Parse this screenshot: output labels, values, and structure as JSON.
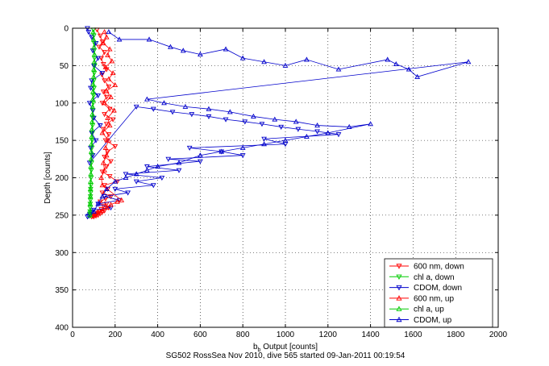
{
  "chart_data": {
    "type": "scatter",
    "xlabel_main": "b",
    "xlabel_sub": "b",
    "xlabel_rest": " Output [counts]",
    "ylabel": "Depth [counts]",
    "caption": "SG502 RossSea Nov 2010, dive 565 started 09-Jan-2011 00:19:54",
    "xlim": [
      0,
      2000
    ],
    "ylim": [
      0,
      400
    ],
    "y_reversed": true,
    "grid": true,
    "x_ticks": [
      "0",
      "200",
      "400",
      "600",
      "800",
      "1000",
      "1200",
      "1400",
      "1600",
      "1800",
      "2000"
    ],
    "y_ticks": [
      "0",
      "50",
      "100",
      "150",
      "200",
      "250",
      "300",
      "350",
      "400"
    ],
    "legend_position": "bottom-right",
    "series": [
      {
        "name": "600 nm, down",
        "color": "#ff0000",
        "marker": "triangle-down",
        "x": [
          115,
          130,
          140,
          125,
          150,
          135,
          145,
          160,
          138,
          150,
          170,
          145,
          160,
          140,
          175,
          150,
          190,
          160,
          145,
          170,
          155,
          200,
          165,
          150,
          180,
          160,
          140,
          175,
          210,
          150,
          165,
          140,
          180,
          155,
          130,
          160,
          145,
          170,
          135,
          150,
          125,
          140,
          120,
          130,
          110,
          120,
          100,
          110,
          95,
          100,
          90
        ],
        "y": [
          2,
          10,
          18,
          25,
          32,
          40,
          48,
          55,
          62,
          70,
          78,
          85,
          92,
          100,
          108,
          115,
          122,
          128,
          135,
          142,
          150,
          158,
          165,
          172,
          178,
          185,
          192,
          198,
          205,
          210,
          215,
          220,
          225,
          228,
          232,
          235,
          238,
          240,
          242,
          244,
          245,
          246,
          247,
          248,
          249,
          250,
          250,
          251,
          251,
          252,
          252
        ]
      },
      {
        "name": "chl a, down",
        "color": "#00cc00",
        "marker": "triangle-down",
        "x": [
          98,
          100,
          102,
          101,
          103,
          104,
          102,
          100,
          101,
          99,
          97,
          96,
          95,
          94,
          93,
          92,
          91,
          90,
          89,
          88,
          87,
          86,
          85,
          85,
          84,
          84,
          83,
          83,
          82,
          82,
          82
        ],
        "y": [
          2,
          10,
          20,
          30,
          40,
          50,
          60,
          70,
          80,
          90,
          100,
          110,
          120,
          130,
          140,
          150,
          160,
          170,
          180,
          190,
          200,
          210,
          215,
          220,
          225,
          230,
          235,
          240,
          245,
          248,
          251
        ]
      },
      {
        "name": "CDOM, down",
        "color": "#0000cc",
        "marker": "triangle-down",
        "x": [
          70,
          75,
          90,
          110,
          95,
          120,
          100,
          140,
          90,
          85,
          120,
          80,
          95,
          100,
          130,
          90,
          110,
          85,
          95,
          80,
          300,
          380,
          470,
          560,
          640,
          720,
          810,
          890,
          980,
          1060,
          1150,
          1250,
          900,
          1000,
          550,
          700,
          800,
          450,
          600,
          350,
          500,
          250,
          420,
          300,
          380,
          200,
          260,
          150,
          220,
          120,
          180,
          100,
          90,
          80,
          75,
          70
        ],
        "y": [
          0,
          5,
          12,
          20,
          30,
          40,
          50,
          60,
          70,
          80,
          90,
          100,
          110,
          120,
          130,
          140,
          150,
          160,
          170,
          180,
          105,
          108,
          112,
          115,
          118,
          122,
          125,
          128,
          132,
          135,
          138,
          142,
          148,
          155,
          160,
          165,
          170,
          175,
          178,
          185,
          190,
          195,
          200,
          205,
          210,
          215,
          220,
          225,
          230,
          235,
          240,
          243,
          246,
          249,
          251,
          252
        ]
      },
      {
        "name": "600 nm, up",
        "color": "#ff0000",
        "marker": "triangle-up",
        "x": [
          150,
          160,
          145,
          175,
          165,
          185,
          155,
          190,
          170,
          200,
          160,
          180,
          150,
          195,
          165,
          175,
          140,
          170,
          155,
          160,
          145,
          150,
          135,
          140,
          230,
          210,
          180,
          160,
          140,
          120,
          110,
          100
        ],
        "y": [
          5,
          12,
          20,
          28,
          36,
          44,
          52,
          60,
          68,
          76,
          84,
          92,
          100,
          110,
          120,
          130,
          140,
          150,
          160,
          170,
          180,
          190,
          200,
          210,
          230,
          232,
          236,
          240,
          244,
          246,
          248,
          250
        ]
      },
      {
        "name": "chl a, up",
        "color": "#00cc00",
        "marker": "triangle-up",
        "x": [
          97,
          99,
          101,
          103,
          102,
          100,
          99,
          97,
          96,
          95,
          94,
          93,
          92,
          91,
          90,
          89,
          88,
          87,
          86,
          86,
          85,
          84,
          84,
          83,
          83,
          82
        ],
        "y": [
          5,
          15,
          25,
          35,
          45,
          55,
          65,
          75,
          85,
          95,
          105,
          115,
          125,
          135,
          145,
          155,
          165,
          175,
          185,
          195,
          205,
          215,
          225,
          235,
          245,
          250
        ]
      },
      {
        "name": "CDOM, up",
        "color": "#0000cc",
        "marker": "triangle-up",
        "x": [
          170,
          220,
          360,
          460,
          520,
          600,
          720,
          800,
          900,
          1000,
          1100,
          1250,
          1480,
          1520,
          1580,
          1620,
          1860,
          350,
          430,
          530,
          640,
          740,
          850,
          950,
          1050,
          1150,
          1300,
          1400,
          1200,
          1100,
          1000,
          900,
          800,
          700,
          600,
          500,
          400,
          350,
          300,
          250,
          200,
          160,
          140,
          120,
          100
        ],
        "y": [
          5,
          15,
          15,
          25,
          30,
          35,
          28,
          40,
          45,
          50,
          42,
          55,
          42,
          48,
          55,
          65,
          45,
          95,
          100,
          105,
          108,
          112,
          118,
          122,
          125,
          130,
          132,
          128,
          140,
          145,
          150,
          155,
          160,
          165,
          170,
          180,
          185,
          190,
          195,
          200,
          205,
          215,
          225,
          235,
          245
        ]
      }
    ]
  }
}
